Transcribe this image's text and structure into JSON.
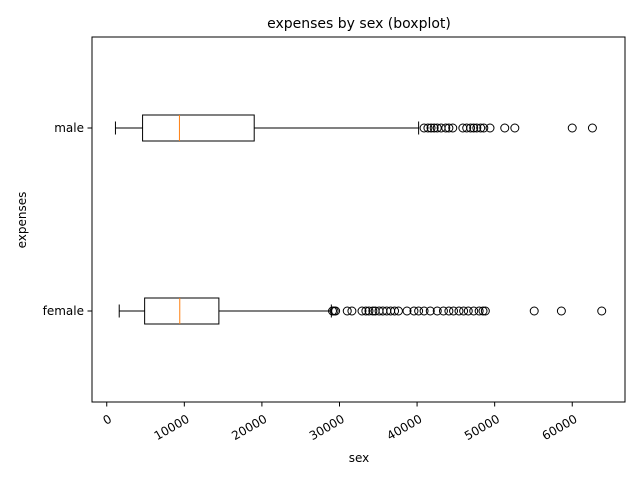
{
  "chart_data": {
    "type": "boxplot",
    "orientation": "horizontal",
    "title": "expenses by sex (boxplot)",
    "xlabel": "sex",
    "ylabel": "expenses",
    "xlim": [
      -1900,
      66800
    ],
    "xticks": [
      0,
      10000,
      20000,
      30000,
      40000,
      50000,
      60000
    ],
    "xtick_labels": [
      "0",
      "10000",
      "20000",
      "30000",
      "40000",
      "50000",
      "60000"
    ],
    "xtick_rotation": 30,
    "categories": [
      "female",
      "male"
    ],
    "grid": false,
    "colors": {
      "box": "#000000",
      "median": "#ff7f0e",
      "flier": "#000000"
    },
    "boxes": [
      {
        "name": "female",
        "whisker_low": 1608,
        "q1": 4885,
        "median": 9413,
        "q3": 14455,
        "whisker_high": 28950,
        "outliers": [
          29100,
          29300,
          29500,
          31000,
          31600,
          32900,
          33400,
          33800,
          34300,
          34600,
          35100,
          35600,
          36100,
          36600,
          37100,
          37600,
          38700,
          39600,
          40200,
          40900,
          41700,
          42600,
          43400,
          44100,
          44700,
          45400,
          46000,
          46600,
          47300,
          48000,
          48500,
          48800,
          55100,
          58600,
          63800
        ]
      },
      {
        "name": "male",
        "whisker_low": 1122,
        "q1": 4619,
        "median": 9370,
        "q3": 19007,
        "whisker_high": 40200,
        "outliers": [
          40900,
          41400,
          41800,
          42200,
          42600,
          43100,
          43700,
          44100,
          44600,
          45900,
          46400,
          46900,
          47300,
          47700,
          48200,
          48600,
          49400,
          51300,
          52600,
          60000,
          62600
        ]
      }
    ]
  }
}
